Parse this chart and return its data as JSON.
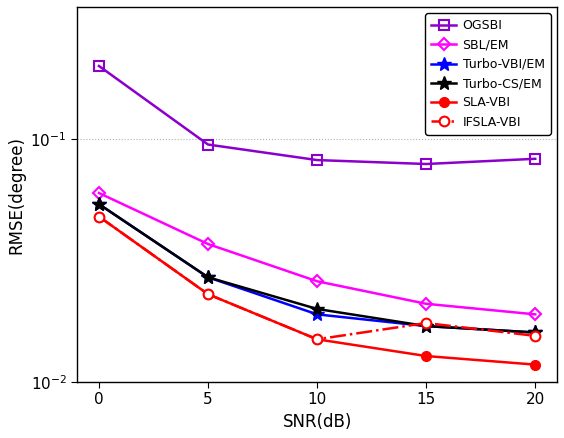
{
  "snr": [
    0,
    5,
    10,
    15,
    20
  ],
  "OGSBI": [
    0.2,
    0.095,
    0.082,
    0.079,
    0.083
  ],
  "SBL_EM": [
    0.06,
    0.037,
    0.026,
    0.021,
    0.019
  ],
  "Turbo_VBI_EM": [
    0.054,
    0.027,
    0.019,
    0.017,
    0.016
  ],
  "Turbo_CS_EM": [
    0.054,
    0.027,
    0.02,
    0.017,
    0.016
  ],
  "SLA_VBI": [
    0.048,
    0.023,
    0.015,
    0.0128,
    0.0118
  ],
  "IFSLA_VBI": [
    0.048,
    0.023,
    0.015,
    0.0175,
    0.0155
  ],
  "colors": {
    "OGSBI": "#8B00CC",
    "SBL_EM": "#FF00FF",
    "Turbo_VBI_EM": "#0000FF",
    "Turbo_CS_EM": "#000000",
    "SLA_VBI": "#FF0000",
    "IFSLA_VBI": "#FF0000"
  },
  "xlabel": "SNR(dB)",
  "ylabel": "RMSE(degree)",
  "xlim": [
    -1,
    21
  ],
  "ylim": [
    0.01,
    0.35
  ],
  "xticks": [
    0,
    5,
    10,
    15,
    20
  ],
  "legend_labels": [
    "OGSBI",
    "SBL/EM",
    "Turbo-VBI/EM",
    "Turbo-CS/EM",
    "SLA-VBI",
    "IFSLA-VBI"
  ],
  "legend_loc": "upper right",
  "grid": true,
  "background_color": "#ffffff"
}
